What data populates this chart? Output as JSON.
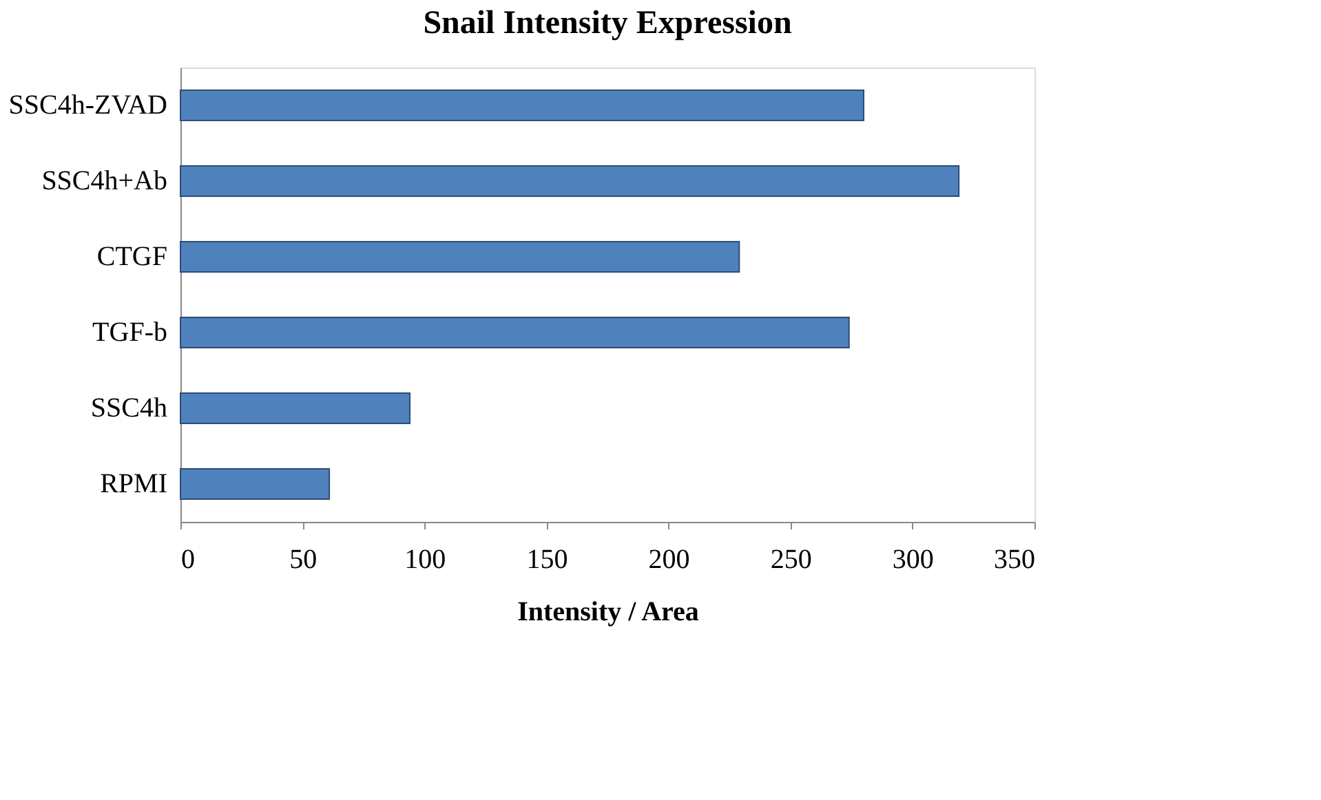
{
  "chart_data": {
    "type": "bar",
    "orientation": "horizontal",
    "title": "Snail Intensity Expression",
    "xlabel": "Intensity / Area",
    "categories": [
      "SSC4h-ZVAD",
      "SSC4h+Ab",
      "CTGF",
      "TGF-b",
      "SSC4h",
      "RPMI"
    ],
    "values": [
      280,
      319,
      229,
      274,
      94,
      61
    ],
    "color": "#4f81bd",
    "xlim": [
      0,
      350
    ],
    "xticks": [
      0,
      50,
      100,
      150,
      200,
      250,
      300,
      350
    ],
    "grid": false
  }
}
